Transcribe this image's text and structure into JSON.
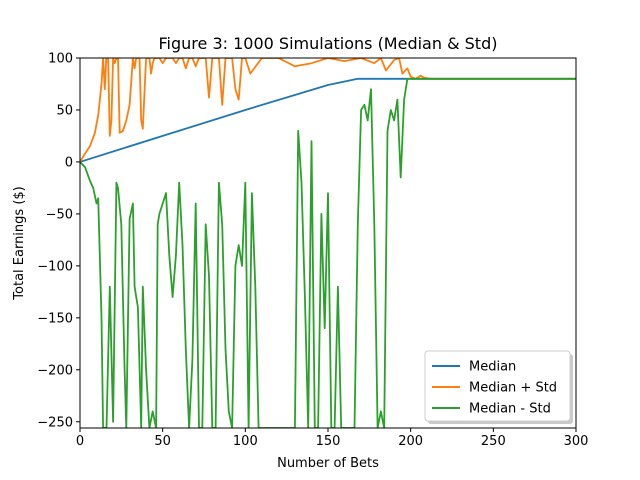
{
  "chart_data": {
    "type": "line",
    "title": "Figure 3: 1000 Simulations (Median & Std)",
    "xlabel": "Number of Bets",
    "ylabel": "Total Earnings ($)",
    "xlim": [
      0,
      300
    ],
    "ylim": [
      -256,
      100
    ],
    "xticks": [
      0,
      50,
      100,
      150,
      200,
      250,
      300
    ],
    "yticks": [
      -250,
      -200,
      -150,
      -100,
      -50,
      0,
      50,
      100
    ],
    "xtick_labels": [
      "0",
      "50",
      "100",
      "150",
      "200",
      "250",
      "300"
    ],
    "ytick_labels": [
      "−250",
      "−200",
      "−150",
      "−100",
      "−50",
      "0",
      "50",
      "100"
    ],
    "grid": false,
    "legend_position": "lower-right",
    "series": [
      {
        "name": "Median",
        "color": "#1f77b4",
        "x": [
          0,
          50,
          100,
          150,
          168,
          200,
          250,
          300
        ],
        "y": [
          0,
          25,
          50,
          74,
          80,
          80,
          80,
          80
        ]
      },
      {
        "name": "Median + Std",
        "color": "#ff7f0e",
        "x": [
          0,
          3,
          6,
          9,
          11,
          13,
          14,
          15,
          16,
          17,
          18,
          19,
          20,
          21,
          22,
          23,
          24,
          26,
          28,
          30,
          32,
          33,
          34,
          36,
          37,
          38,
          40,
          42,
          43,
          44,
          45,
          48,
          50,
          52,
          54,
          56,
          58,
          60,
          62,
          64,
          66,
          68,
          70,
          72,
          74,
          76,
          78,
          80,
          82,
          84,
          86,
          88,
          90,
          92,
          94,
          96,
          98,
          100,
          103,
          110,
          120,
          130,
          140,
          150,
          160,
          170,
          178,
          182,
          185,
          190,
          193,
          195,
          198,
          200,
          203,
          206,
          208,
          212,
          250,
          300
        ],
        "y": [
          0,
          8,
          15,
          28,
          45,
          75,
          100,
          70,
          105,
          100,
          25,
          40,
          100,
          95,
          100,
          100,
          28,
          30,
          40,
          55,
          100,
          90,
          100,
          100,
          40,
          32,
          100,
          100,
          85,
          95,
          100,
          100,
          95,
          100,
          100,
          100,
          95,
          100,
          100,
          90,
          100,
          100,
          92,
          100,
          100,
          100,
          62,
          100,
          100,
          100,
          55,
          100,
          100,
          100,
          70,
          60,
          100,
          100,
          85,
          100,
          100,
          92,
          95,
          100,
          97,
          100,
          95,
          100,
          88,
          98,
          100,
          85,
          90,
          82,
          80,
          83,
          81,
          80,
          80,
          80
        ]
      },
      {
        "name": "Median - Std",
        "color": "#2ca02c",
        "x": [
          0,
          3,
          6,
          8,
          10,
          11,
          12,
          13,
          14,
          16,
          18,
          20,
          22,
          23,
          25,
          27,
          28,
          30,
          32,
          33,
          35,
          37,
          38,
          40,
          42,
          44,
          46,
          47,
          48,
          50,
          52,
          54,
          56,
          58,
          60,
          62,
          64,
          66,
          68,
          70,
          72,
          74,
          76,
          78,
          80,
          82,
          84,
          86,
          88,
          90,
          92,
          94,
          96,
          98,
          100,
          102,
          104,
          106,
          108,
          110,
          112,
          114,
          116,
          118,
          120,
          122,
          124,
          126,
          128,
          130,
          132,
          134,
          136,
          138,
          140,
          142,
          144,
          146,
          148,
          150,
          152,
          154,
          156,
          158,
          160,
          162,
          164,
          166,
          168,
          170,
          172,
          174,
          176,
          178,
          180,
          182,
          184,
          186,
          188,
          190,
          192,
          194,
          196,
          198,
          200,
          202,
          205,
          208,
          212,
          250,
          300
        ],
        "y": [
          0,
          -5,
          -18,
          -25,
          -40,
          -35,
          -90,
          -150,
          -256,
          -256,
          -120,
          -250,
          -20,
          -25,
          -60,
          -200,
          -256,
          -55,
          -40,
          -120,
          -140,
          -256,
          -120,
          -200,
          -256,
          -240,
          -256,
          -60,
          -50,
          -40,
          -30,
          -90,
          -130,
          -90,
          -20,
          -80,
          -180,
          -256,
          -190,
          -40,
          -256,
          -256,
          -60,
          -110,
          -256,
          -256,
          -20,
          -60,
          -180,
          -240,
          -256,
          -100,
          -80,
          -100,
          -20,
          -256,
          -30,
          -120,
          -256,
          -256,
          -256,
          -256,
          -256,
          -256,
          -256,
          -256,
          -256,
          -256,
          -256,
          -256,
          30,
          -20,
          -130,
          -256,
          20,
          -256,
          -256,
          -50,
          -160,
          -30,
          -256,
          -256,
          -120,
          -256,
          -256,
          -256,
          -256,
          -256,
          -60,
          50,
          55,
          40,
          70,
          -60,
          -256,
          -240,
          -256,
          30,
          50,
          40,
          60,
          -15,
          60,
          80,
          80,
          80,
          80,
          80,
          80,
          80,
          80
        ]
      }
    ]
  }
}
